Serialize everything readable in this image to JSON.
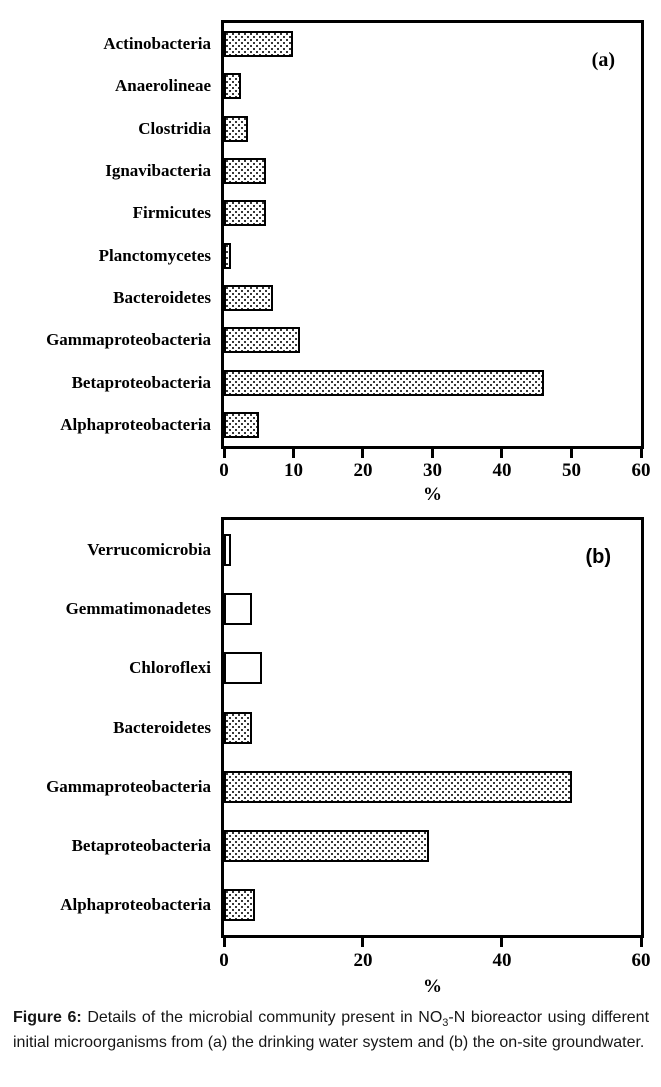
{
  "caption": {
    "label": "Figure 6:",
    "part1": " Details of the microbial community present in NO",
    "sub": "3",
    "part2": "-N bioreactor using different initial microorganisms from (a) the drinking water system and (b) the on-site groundwater."
  },
  "chart_data": [
    {
      "type": "bar",
      "orientation": "horizontal",
      "panel_label": "(a)",
      "title": "",
      "xlabel": "%",
      "xlim": [
        0,
        60
      ],
      "xticks": [
        0,
        10,
        20,
        30,
        40,
        50,
        60
      ],
      "grid": false,
      "categories": [
        "Actinobacteria",
        "Anaerolineae",
        "Clostridia",
        "Ignavibacteria",
        "Firmicutes",
        "Planctomycetes",
        "Bacteroidetes",
        "Gammaproteobacteria",
        "Betaproteobacteria",
        "Alphaproteobacteria"
      ],
      "values": [
        10,
        2.5,
        3.5,
        6,
        6,
        1,
        7,
        11,
        46,
        5
      ],
      "fills": [
        "stipple",
        "stipple",
        "stipple",
        "stipple",
        "stipple",
        "stipple",
        "stipple",
        "stipple",
        "stipple",
        "stipple"
      ],
      "bar_color": "#ffffff",
      "bar_pattern_color": "#000000",
      "border_color": "#000000"
    },
    {
      "type": "bar",
      "orientation": "horizontal",
      "panel_label": "(b)",
      "title": "",
      "xlabel": "%",
      "xlim": [
        0,
        60
      ],
      "xticks": [
        0,
        20,
        40,
        60
      ],
      "grid": false,
      "categories": [
        "Verrucomicrobia",
        "Gemmatimonadetes",
        "Chloroflexi",
        "Bacteroidetes",
        "Gammaproteobacteria",
        "Betaproteobacteria",
        "Alphaproteobacteria"
      ],
      "values": [
        1,
        4,
        5.5,
        4,
        50,
        29.5,
        4.5
      ],
      "fills": [
        "open",
        "open",
        "open",
        "stipple",
        "stipple",
        "stipple",
        "stipple"
      ],
      "bar_color": "#ffffff",
      "bar_pattern_color": "#000000",
      "border_color": "#000000"
    }
  ]
}
